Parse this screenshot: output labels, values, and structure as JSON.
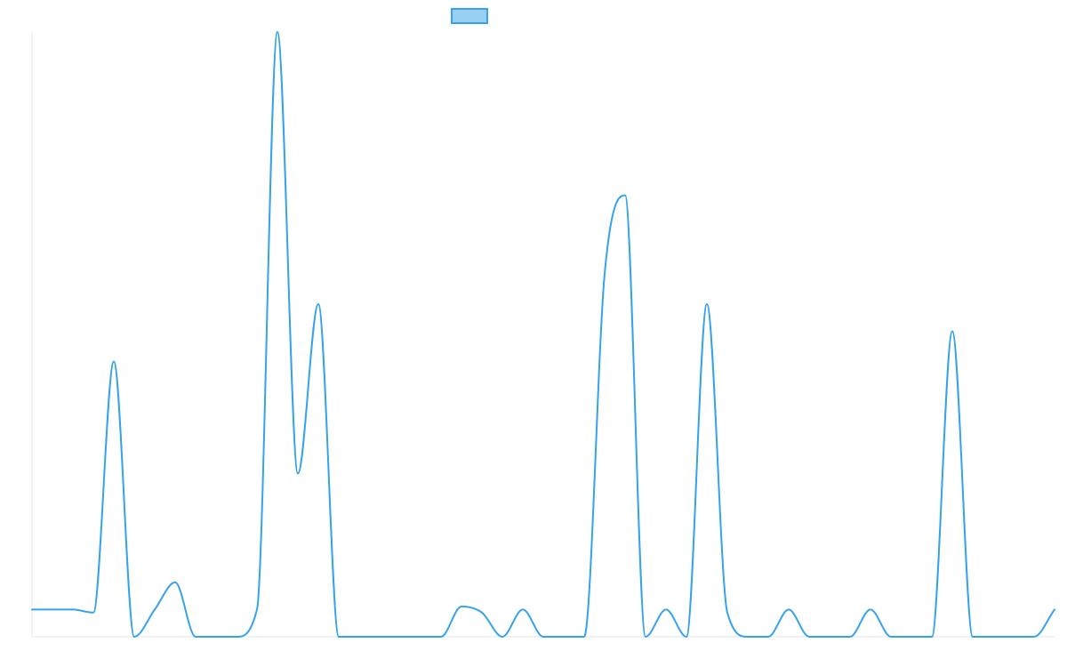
{
  "chart_data": {
    "type": "line",
    "title": "",
    "xlabel": "",
    "ylabel": "",
    "legend": {
      "position": "top",
      "entries": [
        {
          "label": "",
          "fill": "#99d0f2",
          "stroke": "#36a2eb"
        }
      ]
    },
    "grid": false,
    "axes_visible": true,
    "tick_labels_visible": false,
    "xlim": [
      0,
      50
    ],
    "ylim": [
      0,
      100
    ],
    "colors": {
      "line": "#36a2eb",
      "axis": "#e6e6e6",
      "background": "#ffffff"
    },
    "series": [
      {
        "x": [
          0,
          1,
          2,
          3,
          4,
          5,
          6,
          7,
          8,
          9,
          10,
          11,
          12,
          13,
          14,
          15,
          16,
          17,
          18,
          19,
          20,
          21,
          22,
          23,
          24,
          25,
          26,
          27,
          28,
          29,
          30,
          31,
          32,
          33,
          34,
          35,
          36,
          37,
          38,
          39,
          40,
          41,
          42,
          43,
          44,
          45,
          46,
          47,
          48,
          49,
          50
        ],
        "values": [
          4.5,
          4.5,
          4.5,
          4,
          45.5,
          0,
          4.5,
          9,
          0,
          0,
          0,
          4.5,
          100,
          27,
          55,
          0,
          0,
          0,
          0,
          0,
          0,
          5,
          4,
          0,
          4.5,
          0,
          0,
          0,
          60,
          73,
          0,
          4.5,
          0,
          55,
          4,
          0,
          0,
          4.5,
          0,
          0,
          0,
          4.5,
          0,
          0,
          0,
          50.5,
          0,
          0,
          0,
          0,
          4.5
        ]
      }
    ]
  }
}
